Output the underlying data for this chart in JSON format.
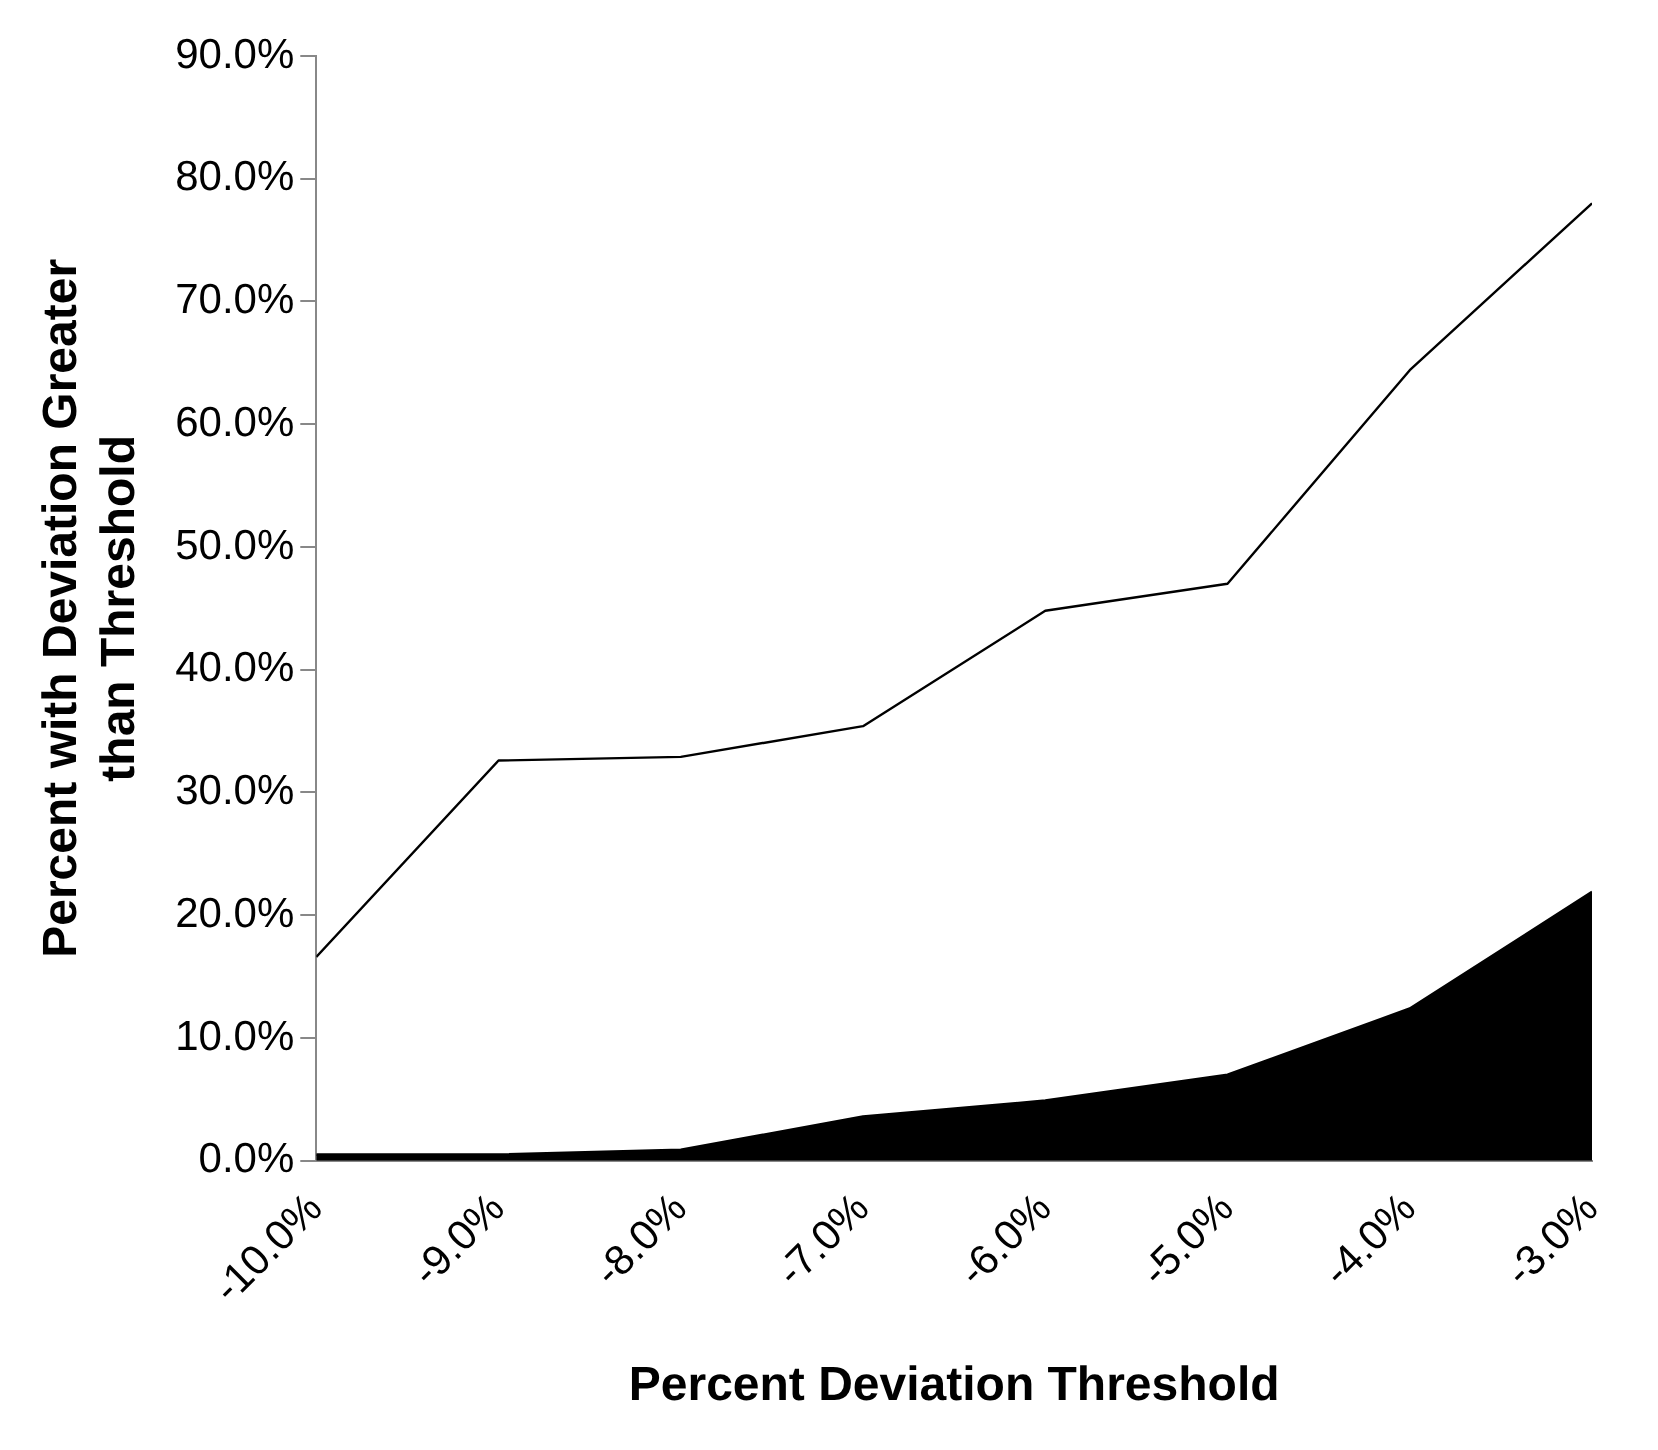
{
  "chart_data": {
    "type": "area",
    "xlabel": "Percent Deviation Threshold",
    "ylabel": "Percent with Deviation Greater than Threshold",
    "x": [
      -10,
      -9,
      -8,
      -7,
      -6,
      -5,
      -4,
      -3
    ],
    "series": [
      {
        "type": "line",
        "color": "#000000",
        "values": [
          16.6,
          32.6,
          32.9,
          35.4,
          44.8,
          47.0,
          64.4,
          78.0
        ]
      },
      {
        "type": "area",
        "color": "#000000",
        "values": [
          0.5,
          0.5,
          0.9,
          3.6,
          4.9,
          7.0,
          12.4,
          21.9
        ]
      }
    ],
    "xlim": [
      -10,
      -3
    ],
    "xticks": [
      {
        "value": -10,
        "label": "-10.0%"
      },
      {
        "value": -9,
        "label": "-9.0%"
      },
      {
        "value": -8,
        "label": "-8.0%"
      },
      {
        "value": -7,
        "label": "-7.0%"
      },
      {
        "value": -6,
        "label": "-6.0%"
      },
      {
        "value": -5,
        "label": "-5.0%"
      },
      {
        "value": -4,
        "label": "-4.0%"
      },
      {
        "value": -3,
        "label": "-3.0%"
      }
    ],
    "ylim": [
      0,
      90
    ],
    "yticks": [
      {
        "value": 0,
        "label": "0.0%"
      },
      {
        "value": 10,
        "label": "10.0%"
      },
      {
        "value": 20,
        "label": "20.0%"
      },
      {
        "value": 30,
        "label": "30.0%"
      },
      {
        "value": 40,
        "label": "40.0%"
      },
      {
        "value": 50,
        "label": "50.0%"
      },
      {
        "value": 60,
        "label": "60.0%"
      },
      {
        "value": 70,
        "label": "70.0%"
      },
      {
        "value": 80,
        "label": "80.0%"
      },
      {
        "value": 90,
        "label": "90.0%"
      }
    ],
    "grid": false,
    "legend": false,
    "marker": "none",
    "line_style": "solid"
  }
}
